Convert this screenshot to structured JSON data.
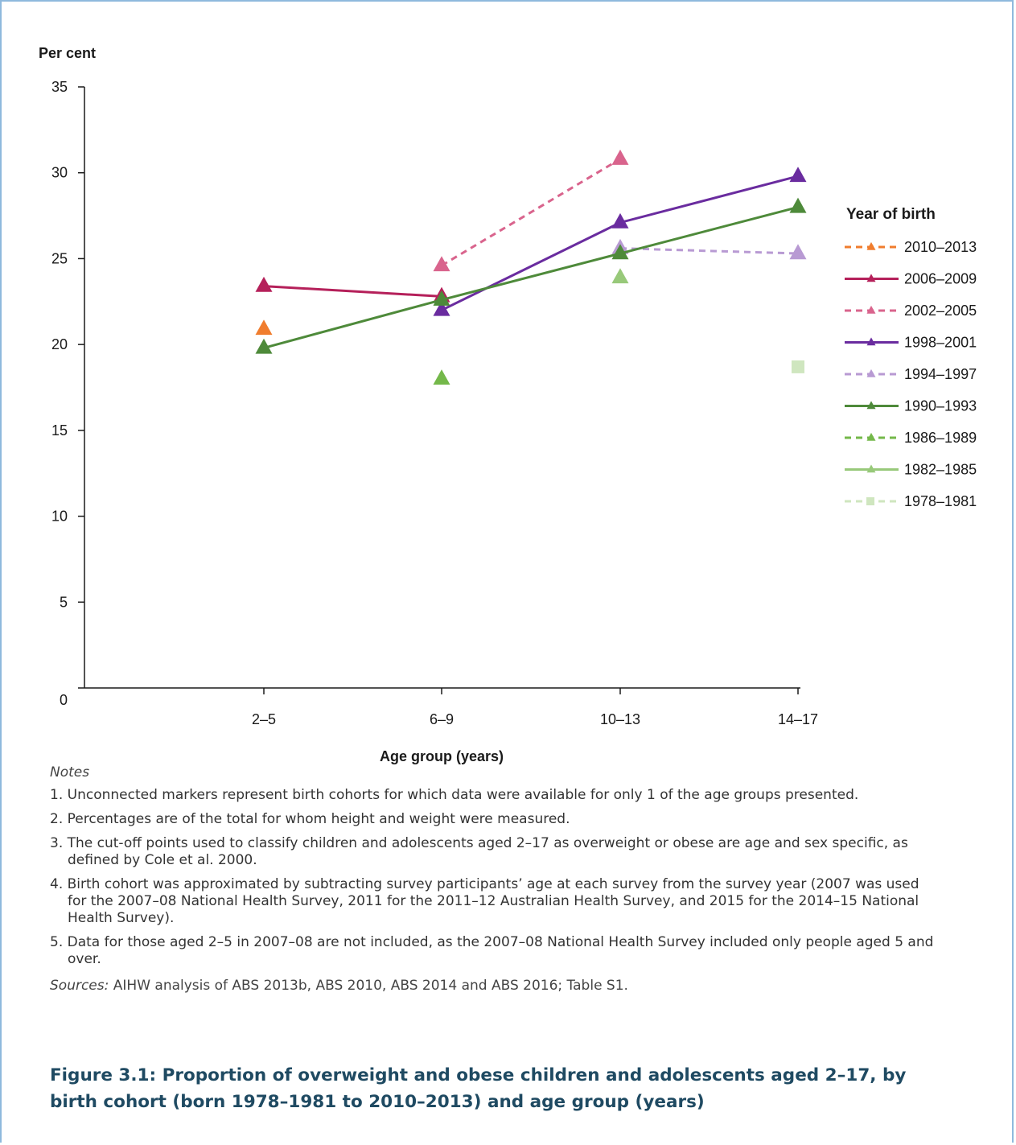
{
  "chart_data": {
    "type": "line",
    "ylabel": "Per cent",
    "xlabel": "Age group (years)",
    "categories": [
      "2–5",
      "6–9",
      "10–13",
      "14–17"
    ],
    "ylim": [
      0,
      35
    ],
    "yticks": [
      0,
      5,
      10,
      15,
      20,
      25,
      30,
      35
    ],
    "grid": false,
    "legend_title": "Year of birth",
    "legend_position": "right",
    "series": [
      {
        "name": "2010–2013",
        "color": "#f07d2e",
        "dashed": true,
        "marker": "triangle",
        "values": [
          20.9,
          null,
          null,
          null
        ]
      },
      {
        "name": "2006–2009",
        "color": "#b5205a",
        "dashed": false,
        "marker": "triangle",
        "values": [
          23.4,
          22.8,
          null,
          null
        ]
      },
      {
        "name": "2002–2005",
        "color": "#d9648d",
        "dashed": true,
        "marker": "triangle",
        "values": [
          null,
          24.6,
          30.8,
          null
        ]
      },
      {
        "name": "1998–2001",
        "color": "#6a2c9f",
        "dashed": false,
        "marker": "triangle",
        "values": [
          null,
          22.0,
          27.1,
          29.8
        ]
      },
      {
        "name": "1994–1997",
        "color": "#b89ad3",
        "dashed": true,
        "marker": "triangle",
        "values": [
          null,
          null,
          25.6,
          25.3
        ]
      },
      {
        "name": "1990–1993",
        "color": "#4e8a3a",
        "dashed": false,
        "marker": "triangle",
        "values": [
          19.8,
          22.6,
          25.3,
          28.0
        ]
      },
      {
        "name": "1986–1989",
        "color": "#74b84a",
        "dashed": true,
        "marker": "triangle",
        "values": [
          null,
          18.0,
          null,
          null
        ]
      },
      {
        "name": "1982–1985",
        "color": "#98c97a",
        "dashed": false,
        "marker": "triangle",
        "values": [
          null,
          null,
          23.9,
          null
        ]
      },
      {
        "name": "1978–1981",
        "color": "#cfe6bf",
        "dashed": true,
        "marker": "square",
        "values": [
          null,
          null,
          null,
          18.7
        ]
      }
    ]
  },
  "notes": {
    "heading": "Notes",
    "items": [
      "1. Unconnected markers represent birth cohorts for which data were available for only 1 of the age groups presented.",
      "2. Percentages are of the total for whom height and weight were measured.",
      "3. The cut-off points used to classify children and adolescents aged 2–17 as overweight or obese are age and sex specific, as defined by Cole et al. 2000.",
      "4. Birth cohort was approximated by subtracting survey participants’ age at each survey from the survey year (2007 was used for the 2007–08 National Health Survey, 2011 for the 2011–12 Australian Health Survey, and 2015 for the 2014–15 National Health Survey).",
      "5. Data for those aged 2–5 in 2007–08 are not included, as the 2007–08 National Health Survey included only people aged 5 and over."
    ]
  },
  "sources": {
    "label": "Sources:",
    "text": " AIHW analysis of ABS 2013b, ABS 2010, ABS 2014 and ABS 2016; Table S1."
  },
  "caption": "Figure 3.1: Proportion of overweight and obese children and adolescents aged 2–17, by birth cohort (born 1978–1981 to 2010–2013) and age group (years)"
}
